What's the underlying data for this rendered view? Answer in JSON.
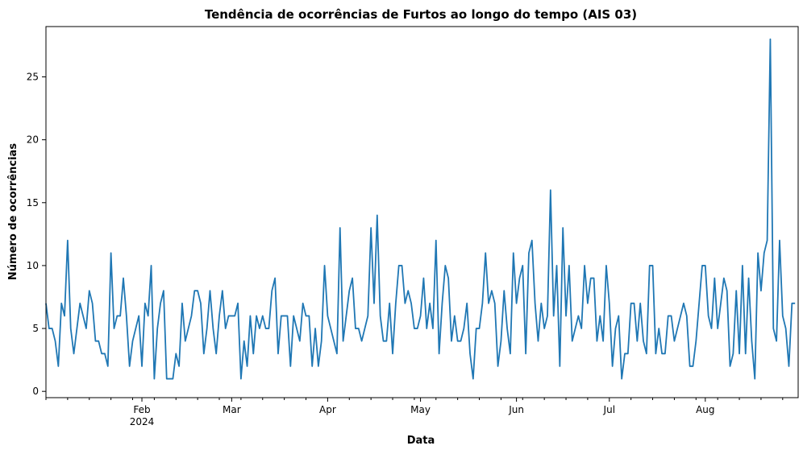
{
  "chart_data": {
    "type": "line",
    "title": "Tendência de ocorrências de Furtos ao longo do tempo (AIS 03)",
    "xlabel": "Data",
    "ylabel": "Número de ocorrências",
    "x_start": "2024-01-01",
    "x_end": "2024-08-31",
    "ylim": [
      -0.5,
      29
    ],
    "yticks": [
      0,
      5,
      10,
      15,
      20,
      25
    ],
    "xticks": [
      {
        "date": "2024-02-01",
        "label": "Feb",
        "sublabel": "2024"
      },
      {
        "date": "2024-03-01",
        "label": "Mar",
        "sublabel": ""
      },
      {
        "date": "2024-04-01",
        "label": "Apr",
        "sublabel": ""
      },
      {
        "date": "2024-05-01",
        "label": "May",
        "sublabel": ""
      },
      {
        "date": "2024-06-01",
        "label": "Jun",
        "sublabel": ""
      },
      {
        "date": "2024-07-01",
        "label": "Jul",
        "sublabel": ""
      },
      {
        "date": "2024-08-01",
        "label": "Aug",
        "sublabel": ""
      }
    ],
    "grid": false,
    "legend": "none",
    "series": [
      {
        "color": "#1f77b4",
        "values": [
          7,
          5,
          5,
          4,
          2,
          7,
          6,
          12,
          5,
          3,
          5,
          7,
          6,
          5,
          8,
          7,
          4,
          4,
          3,
          3,
          2,
          11,
          5,
          6,
          6,
          9,
          6,
          2,
          4,
          5,
          6,
          2,
          7,
          6,
          10,
          1,
          5,
          7,
          8,
          1,
          1,
          1,
          3,
          2,
          7,
          4,
          5,
          6,
          8,
          8,
          7,
          3,
          5,
          8,
          5,
          3,
          6,
          8,
          5,
          6,
          6,
          6,
          7,
          1,
          4,
          2,
          6,
          3,
          6,
          5,
          6,
          5,
          5,
          8,
          9,
          3,
          6,
          6,
          6,
          2,
          6,
          5,
          4,
          7,
          6,
          6,
          2,
          5,
          2,
          4,
          10,
          6,
          5,
          4,
          3,
          13,
          4,
          6,
          8,
          9,
          5,
          5,
          4,
          5,
          6,
          13,
          7,
          14,
          6,
          4,
          4,
          7,
          3,
          7,
          10,
          10,
          7,
          8,
          7,
          5,
          5,
          6,
          9,
          5,
          7,
          5,
          12,
          3,
          7,
          10,
          9,
          4,
          6,
          4,
          4,
          5,
          7,
          3,
          1,
          5,
          5,
          7,
          11,
          7,
          8,
          7,
          2,
          4,
          8,
          5,
          3,
          11,
          7,
          9,
          10,
          3,
          11,
          12,
          7,
          4,
          7,
          5,
          6,
          16,
          6,
          10,
          2,
          13,
          6,
          10,
          4,
          5,
          6,
          5,
          10,
          7,
          9,
          9,
          4,
          6,
          4,
          10,
          7,
          2,
          5,
          6,
          1,
          3,
          3,
          7,
          7,
          4,
          7,
          4,
          3,
          10,
          10,
          3,
          5,
          3,
          3,
          6,
          6,
          4,
          5,
          6,
          7,
          6,
          2,
          2,
          4,
          7,
          10,
          10,
          6,
          5,
          9,
          5,
          7,
          9,
          8,
          2,
          3,
          8,
          3,
          10,
          3,
          9,
          4,
          1,
          11,
          8,
          11,
          12,
          28,
          5,
          4,
          12,
          6,
          5,
          2,
          7,
          7
        ]
      }
    ]
  }
}
